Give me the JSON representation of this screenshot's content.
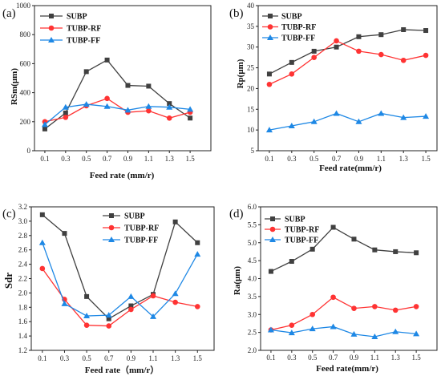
{
  "chart_data": [
    {
      "type": "line",
      "panel_label": "(a)",
      "xlabel": "Feed rate (mm/r)",
      "ylabel": "RSm(μm)",
      "x": [
        0.1,
        0.3,
        0.5,
        0.7,
        0.9,
        1.1,
        1.3,
        1.5
      ],
      "xlim": [
        0,
        1.7
      ],
      "ylim": [
        0,
        1000
      ],
      "yticks": [
        "0",
        "200",
        "400",
        "600",
        "800",
        "1000"
      ],
      "grid": false,
      "legend": "top-left",
      "series": [
        {
          "name": "SUBP",
          "color": "#404040",
          "marker": "square",
          "values": [
            150,
            260,
            545,
            625,
            450,
            445,
            325,
            225
          ]
        },
        {
          "name": "TUBP-RF",
          "color": "#ff3333",
          "marker": "circle",
          "values": [
            200,
            230,
            310,
            360,
            265,
            275,
            225,
            265
          ]
        },
        {
          "name": "TUBP-FF",
          "color": "#1e88e5",
          "marker": "triangle",
          "values": [
            180,
            300,
            320,
            305,
            280,
            305,
            300,
            285
          ]
        }
      ]
    },
    {
      "type": "line",
      "panel_label": "(b)",
      "xlabel": "Feed rate(mm/r)",
      "ylabel": "Rp(μm)",
      "x": [
        0.1,
        0.3,
        0.5,
        0.7,
        0.9,
        1.1,
        1.3,
        1.5
      ],
      "xlim": [
        0,
        1.6
      ],
      "ylim": [
        5,
        40
      ],
      "yticks": [
        "5",
        "10",
        "15",
        "20",
        "25",
        "30",
        "35",
        "40"
      ],
      "grid": false,
      "legend": "top-left",
      "series": [
        {
          "name": "SUBP",
          "color": "#404040",
          "marker": "square",
          "values": [
            23.5,
            26.3,
            29.0,
            30.0,
            32.5,
            33.0,
            34.2,
            34.0
          ]
        },
        {
          "name": "TUBP-RF",
          "color": "#ff3333",
          "marker": "circle",
          "values": [
            21.0,
            23.5,
            27.5,
            31.5,
            29.0,
            28.2,
            26.8,
            28.0
          ]
        },
        {
          "name": "TUBP-FF",
          "color": "#1e88e5",
          "marker": "triangle",
          "values": [
            10.0,
            11.0,
            12.0,
            14.0,
            12.0,
            14.0,
            13.0,
            13.3
          ]
        }
      ]
    },
    {
      "type": "line",
      "panel_label": "(c)",
      "xlabel": "Feed rate（mm/r）",
      "ylabel": "Sdr",
      "x": [
        0.1,
        0.3,
        0.5,
        0.7,
        0.9,
        1.1,
        1.3,
        1.5
      ],
      "xlim": [
        0,
        1.65
      ],
      "ylim": [
        1.2,
        3.2
      ],
      "yticks": [
        "1.2",
        "1.4",
        "1.6",
        "1.8",
        "2.0",
        "2.2",
        "2.4",
        "2.6",
        "2.8",
        "3.0",
        "3.2"
      ],
      "grid": false,
      "legend": "top-right",
      "series": [
        {
          "name": "SUBP",
          "color": "#404040",
          "marker": "square",
          "values": [
            3.09,
            2.83,
            1.95,
            1.64,
            1.82,
            1.98,
            2.99,
            2.7
          ]
        },
        {
          "name": "TUBP-RF",
          "color": "#ff3333",
          "marker": "circle",
          "values": [
            2.34,
            1.91,
            1.55,
            1.54,
            1.77,
            1.96,
            1.87,
            1.81
          ]
        },
        {
          "name": "TUBP-FF",
          "color": "#1e88e5",
          "marker": "triangle",
          "values": [
            2.7,
            1.85,
            1.68,
            1.69,
            1.95,
            1.67,
            1.99,
            2.54
          ]
        }
      ]
    },
    {
      "type": "line",
      "panel_label": "(d)",
      "xlabel": "Feed rate(mm/r)",
      "ylabel": "Ra(μm)",
      "x": [
        0.1,
        0.3,
        0.5,
        0.7,
        0.9,
        1.1,
        1.3,
        1.5
      ],
      "xlim": [
        0,
        1.7
      ],
      "ylim": [
        2.0,
        6.0
      ],
      "yticks": [
        "2.0",
        "2.5",
        "3.0",
        "3.5",
        "4.0",
        "4.5",
        "5.0",
        "5.5",
        "6.0"
      ],
      "grid": false,
      "legend": "top-left",
      "series": [
        {
          "name": "SUBP",
          "color": "#404040",
          "marker": "square",
          "values": [
            4.2,
            4.48,
            4.82,
            5.43,
            5.1,
            4.8,
            4.75,
            4.72
          ]
        },
        {
          "name": "TUBP-RF",
          "color": "#ff3333",
          "marker": "circle",
          "values": [
            2.57,
            2.7,
            3.0,
            3.48,
            3.17,
            3.22,
            3.12,
            3.22
          ]
        },
        {
          "name": "TUBP-FF",
          "color": "#1e88e5",
          "marker": "triangle",
          "values": [
            2.57,
            2.49,
            2.6,
            2.66,
            2.45,
            2.38,
            2.52,
            2.46
          ]
        }
      ]
    }
  ]
}
